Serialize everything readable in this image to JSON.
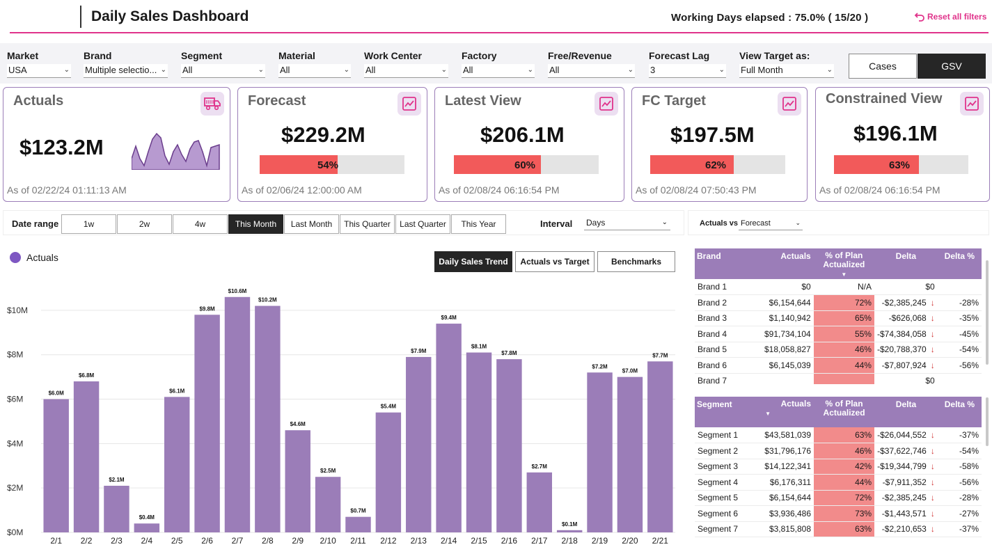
{
  "header": {
    "title": "Daily Sales Dashboard",
    "working_days": "Working Days elapsed : 75.0% ( 15/20 )",
    "reset_label": "Reset all filters",
    "accent": "#e0338b"
  },
  "filters": [
    {
      "label": "Market",
      "value": "USA"
    },
    {
      "label": "Brand",
      "value": "Multiple selectio..."
    },
    {
      "label": "Segment",
      "value": "All"
    },
    {
      "label": "Material",
      "value": "All"
    },
    {
      "label": "Work Center",
      "value": "All"
    },
    {
      "label": "Factory",
      "value": "All"
    },
    {
      "label": "Free/Revenue",
      "value": "All"
    },
    {
      "label": "Forecast Lag",
      "value": "3"
    },
    {
      "label": "View Target as:",
      "value": "Full Month"
    }
  ],
  "unit_toggle": {
    "cases": "Cases",
    "gsv": "GSV",
    "selected": "GSV"
  },
  "kpis": {
    "actuals": {
      "title": "Actuals",
      "value": "$123.2M",
      "date": "As of 02/22/24 01:11:13 AM"
    },
    "forecast": {
      "title": "Forecast",
      "value": "$229.2M",
      "pct": "54%",
      "fill": 0.54,
      "date": "As of 02/06/24 12:00:00 AM"
    },
    "latest": {
      "title": "Latest View",
      "value": "$206.1M",
      "pct": "60%",
      "fill": 0.6,
      "date": "As of 02/08/24 06:16:54 PM"
    },
    "fctarget": {
      "title": "FC Target",
      "value": "$197.5M",
      "pct": "62%",
      "fill": 0.62,
      "date": "As of 02/08/24 07:50:43 PM"
    },
    "constrained": {
      "title": "Constrained View",
      "value": "$196.1M",
      "pct": "63%",
      "fill": 0.63,
      "date": "As of 02/08/24 06:16:54 PM"
    }
  },
  "date_range": {
    "label": "Date range",
    "buttons": [
      "1w",
      "2w",
      "4w",
      "This Month",
      "Last Month",
      "This Quarter",
      "Last Quarter",
      "This Year"
    ],
    "active": "This Month",
    "interval_label": "Interval",
    "interval_value": "Days"
  },
  "actuals_vs": {
    "label": "Actuals vs",
    "value": "Forecast"
  },
  "chart_buttons": {
    "trend": "Daily Sales Trend",
    "target": "Actuals vs Target",
    "bench": "Benchmarks"
  },
  "chart_data": {
    "type": "bar",
    "series": [
      {
        "name": "Actuals",
        "color": "#9b7db8"
      }
    ],
    "categories": [
      "2/1",
      "2/2",
      "2/3",
      "2/4",
      "2/5",
      "2/6",
      "2/7",
      "2/8",
      "2/9",
      "2/10",
      "2/11",
      "2/12",
      "2/13",
      "2/14",
      "2/15",
      "2/16",
      "2/17",
      "2/18",
      "2/19",
      "2/20",
      "2/21"
    ],
    "values": [
      6.0,
      6.8,
      2.1,
      0.4,
      6.1,
      9.8,
      10.6,
      10.2,
      4.6,
      2.5,
      0.7,
      5.4,
      7.9,
      9.4,
      8.1,
      7.8,
      2.7,
      0.1,
      7.2,
      7.0,
      7.7
    ],
    "labels": [
      "$6.0M",
      "$6.8M",
      "$2.1M",
      "$0.4M",
      "$6.1M",
      "$9.8M",
      "$10.6M",
      "$10.2M",
      "$4.6M",
      "$2.5M",
      "$0.7M",
      "$5.4M",
      "$7.9M",
      "$9.4M",
      "$8.1M",
      "$7.8M",
      "$2.7M",
      "$0.1M",
      "$7.2M",
      "$7.0M",
      "$7.7M"
    ],
    "yticks": [
      "$0M",
      "$2M",
      "$4M",
      "$6M",
      "$8M",
      "$10M"
    ],
    "ylim": [
      0,
      11
    ],
    "grid": true,
    "legend": "top-left"
  },
  "brand_table": {
    "headers": [
      "Brand",
      "Actuals",
      "% of Plan Actualized",
      "Delta",
      "Delta %"
    ],
    "rows": [
      [
        "Brand 1",
        "$0",
        "N/A",
        "$0",
        ""
      ],
      [
        "Brand 2",
        "$6,154,644",
        "72%",
        "-$2,385,245",
        "-28%"
      ],
      [
        "Brand 3",
        "$1,140,942",
        "65%",
        "-$626,068",
        "-35%"
      ],
      [
        "Brand 4",
        "$91,734,104",
        "55%",
        "-$74,384,058",
        "-45%"
      ],
      [
        "Brand 5",
        "$18,058,827",
        "46%",
        "-$20,788,370",
        "-54%"
      ],
      [
        "Brand 6",
        "$6,145,039",
        "44%",
        "-$7,807,924",
        "-56%"
      ],
      [
        "Brand 7",
        "",
        "",
        "$0",
        ""
      ]
    ]
  },
  "segment_table": {
    "headers": [
      "Segment",
      "Actuals",
      "% of Plan Actualized",
      "Delta",
      "Delta %"
    ],
    "rows": [
      [
        "Segment 1",
        "$43,581,039",
        "63%",
        "-$26,044,552",
        "-37%"
      ],
      [
        "Segment 2",
        "$31,796,176",
        "46%",
        "-$37,622,746",
        "-54%"
      ],
      [
        "Segment 3",
        "$14,122,341",
        "42%",
        "-$19,344,799",
        "-58%"
      ],
      [
        "Segment 4",
        "$6,176,311",
        "44%",
        "-$7,911,352",
        "-56%"
      ],
      [
        "Segment 5",
        "$6,154,644",
        "72%",
        "-$2,385,245",
        "-28%"
      ],
      [
        "Segment 6",
        "$3,936,486",
        "73%",
        "-$1,443,571",
        "-27%"
      ],
      [
        "Segment 7",
        "$3,815,808",
        "63%",
        "-$2,210,653",
        "-37%"
      ]
    ]
  }
}
